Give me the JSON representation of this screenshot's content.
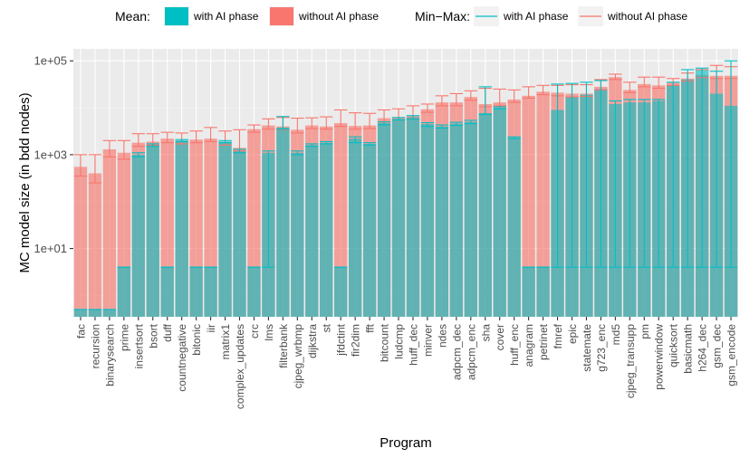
{
  "chart_data": {
    "type": "bar",
    "xlabel": "Program",
    "ylabel": "MC model size (in bdd nodes)",
    "y_scale": "log10",
    "ylim": [
      0.35,
      180000
    ],
    "yticks": [
      {
        "value": 10,
        "label": "1e+01"
      },
      {
        "value": 1000,
        "label": "1e+03"
      },
      {
        "value": 100000,
        "label": "1e+05"
      }
    ],
    "legend": {
      "position": "top",
      "mean_title": "Mean:",
      "minmax_title": "Min−Max:",
      "items": [
        "with AI phase",
        "without AI phase"
      ]
    },
    "colors": {
      "with": "#00BFC4",
      "without": "#F8766D"
    },
    "grid": true,
    "categories": [
      "fac",
      "recursion",
      "binarysearch",
      "prime",
      "insertsort",
      "bsort",
      "duff",
      "countnegative",
      "bitonic",
      "iir",
      "matrix1",
      "complex_updates",
      "crc",
      "lms",
      "filterbank",
      "cjpeg_wrbmp",
      "dijkstra",
      "st",
      "jfdctint",
      "fir2dim",
      "fft",
      "bitcount",
      "ludcmp",
      "huff_dec",
      "minver",
      "ndes",
      "adpcm_dec",
      "adpcm_enc",
      "sha",
      "cover",
      "huff_enc",
      "anagram",
      "petrinet",
      "fmref",
      "epic",
      "statemate",
      "g723_enc",
      "md5",
      "cjpeg_transupp",
      "pm",
      "powerwindow",
      "quicksort",
      "basicmath",
      "h264_dec",
      "gsm_dec",
      "gsm_encode"
    ],
    "series": [
      {
        "name": "with AI phase",
        "mean": [
          0.5,
          0.5,
          0.5,
          4,
          1000,
          1600,
          4,
          2000,
          4,
          4,
          1900,
          1200,
          4,
          1100,
          3800,
          1100,
          1600,
          1800,
          4,
          2200,
          1700,
          4700,
          5800,
          6300,
          4500,
          4000,
          4600,
          5000,
          7700,
          10000,
          2300,
          4,
          4,
          9000,
          17000,
          19000,
          25000,
          12000,
          13000,
          13000,
          14000,
          30000,
          40000,
          65000,
          20000,
          11000
        ],
        "min": [
          0.5,
          0.5,
          0.5,
          4,
          900,
          1500,
          4,
          1900,
          4,
          4,
          1800,
          1100,
          4,
          4,
          3500,
          1000,
          1500,
          1700,
          4,
          1800,
          1600,
          4300,
          5500,
          5700,
          4000,
          3700,
          4200,
          4600,
          7200,
          9500,
          2200,
          4,
          4,
          4,
          4,
          4,
          4,
          4,
          4,
          4,
          4,
          4,
          4,
          4,
          4,
          4
        ],
        "max": [
          0.5,
          0.5,
          0.5,
          4,
          1100,
          1700,
          4,
          2100,
          4,
          4,
          2000,
          1300,
          4,
          1200,
          6500,
          1200,
          1700,
          1900,
          4,
          2400,
          1800,
          5000,
          6200,
          6800,
          4800,
          4300,
          4900,
          5400,
          28000,
          10500,
          2400,
          4,
          4,
          32000,
          33000,
          35000,
          38000,
          14000,
          15000,
          15000,
          15000,
          35000,
          65000,
          70000,
          60000,
          100000
        ]
      },
      {
        "name": "without AI phase",
        "mean": [
          550,
          400,
          1300,
          1100,
          1800,
          1900,
          2200,
          2000,
          2100,
          2200,
          1900,
          1400,
          3500,
          4200,
          4000,
          3400,
          4200,
          4000,
          4700,
          4100,
          4200,
          6000,
          6300,
          6700,
          9300,
          13000,
          13000,
          17000,
          12000,
          13000,
          15000,
          18000,
          22000,
          21000,
          20000,
          20000,
          28000,
          45000,
          24000,
          32000,
          30000,
          34000,
          42000,
          50000,
          48000,
          48000
        ],
        "min": [
          350,
          250,
          900,
          800,
          1500,
          1600,
          1800,
          1700,
          1800,
          1900,
          1600,
          1200,
          3000,
          3500,
          3400,
          2900,
          3600,
          3500,
          4000,
          3500,
          3600,
          5000,
          5500,
          5800,
          8000,
          11000,
          11000,
          14500,
          10500,
          11000,
          13000,
          16000,
          19000,
          18000,
          17000,
          17500,
          24000,
          40000,
          21000,
          28000,
          26000,
          30000,
          37000,
          44000,
          42000,
          42000
        ],
        "max": [
          1000,
          1000,
          2000,
          2000,
          2800,
          2800,
          3000,
          2900,
          3200,
          3800,
          3200,
          3400,
          4300,
          5800,
          6200,
          6000,
          6100,
          6400,
          9000,
          7800,
          7600,
          9000,
          9500,
          11000,
          12000,
          18000,
          20000,
          23000,
          26000,
          25000,
          24000,
          28000,
          30000,
          30000,
          31000,
          31000,
          40000,
          52000,
          35000,
          45000,
          45000,
          42000,
          55000,
          65000,
          80000,
          75000
        ]
      }
    ]
  }
}
